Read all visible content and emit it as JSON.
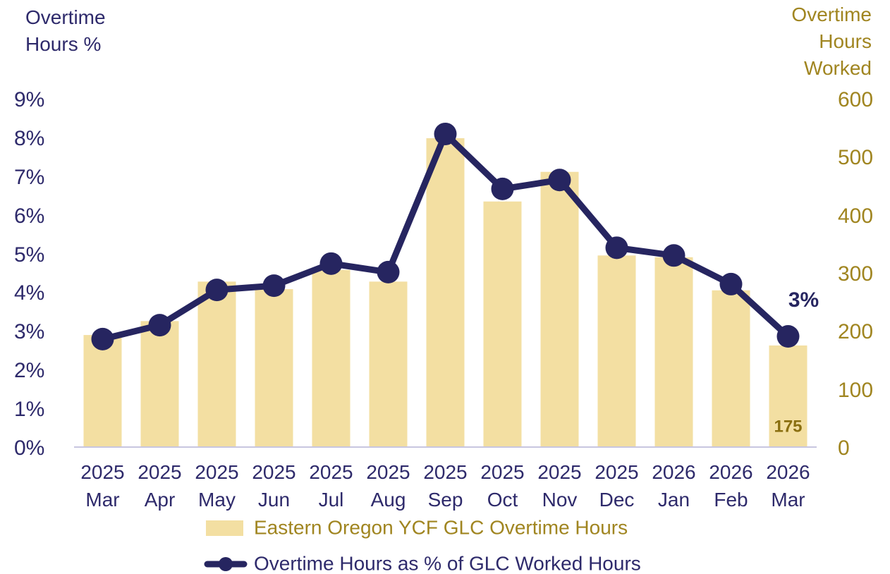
{
  "chart_data": {
    "type": "bar",
    "y_label": "Overtime\nHours %",
    "y2_label": "Overtime\nHours\nWorked",
    "categories": [
      "2025\nMar",
      "2025\nApr",
      "2025\nMay",
      "2025\nJun",
      "2025\nJul",
      "2025\nAug",
      "2025\nSep",
      "2025\nOct",
      "2025\nNov",
      "2025\nDec",
      "2026\nJan",
      "2026\nFeb",
      "2026\nMar"
    ],
    "series": [
      {
        "name": "Eastern Oregon YCF GLC Overtime Hours",
        "type": "bar",
        "axis": "y2",
        "color": "#f3dfa2",
        "values": [
          193,
          217,
          285,
          272,
          305,
          285,
          532,
          423,
          474,
          330,
          327,
          270,
          175
        ]
      },
      {
        "name": "Overtime Hours as % of GLC Worked Hours",
        "type": "line",
        "axis": "y",
        "color": "#262560",
        "values": [
          2.79,
          3.15,
          4.06,
          4.17,
          4.74,
          4.52,
          8.09,
          6.67,
          6.9,
          5.15,
          4.95,
          4.21,
          2.86
        ],
        "value_labels": [
          null,
          null,
          null,
          null,
          null,
          null,
          null,
          null,
          null,
          null,
          null,
          null,
          "3%"
        ]
      }
    ],
    "ylim": [
      0,
      9
    ],
    "yticks": [
      {
        "value": 0,
        "label": "0%"
      },
      {
        "value": 1,
        "label": "1%"
      },
      {
        "value": 2,
        "label": "2%"
      },
      {
        "value": 3,
        "label": "3%"
      },
      {
        "value": 4,
        "label": "4%"
      },
      {
        "value": 5,
        "label": "5%"
      },
      {
        "value": 6,
        "label": "6%"
      },
      {
        "value": 7,
        "label": "7%"
      },
      {
        "value": 8,
        "label": "8%"
      },
      {
        "value": 9,
        "label": "9%"
      }
    ],
    "y2lim": [
      0,
      600
    ],
    "y2ticks": [
      0,
      100,
      200,
      300,
      400,
      500,
      600
    ],
    "grid": false
  }
}
